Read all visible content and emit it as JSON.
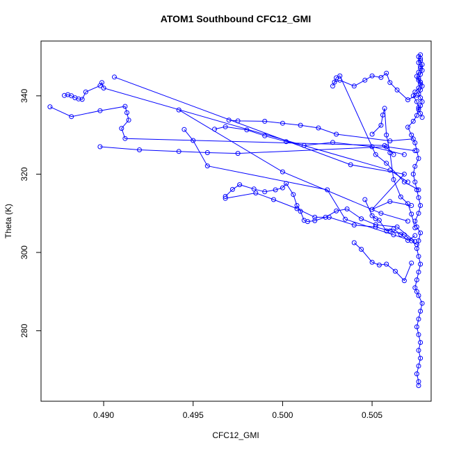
{
  "chart_data": {
    "type": "scatter",
    "title": "ATOM1 Southbound CFC12_GMI",
    "xlabel": "CFC12_GMI",
    "ylabel": "Theta (K)",
    "xlim": [
      0.4865,
      0.5083
    ],
    "ylim": [
      262,
      354
    ],
    "x_ticks": [
      0.49,
      0.495,
      0.5,
      0.505
    ],
    "x_tick_labels": [
      "0.490",
      "0.495",
      "0.500",
      "0.505"
    ],
    "y_ticks": [
      280,
      300,
      320,
      340
    ],
    "y_tick_labels": [
      "280",
      "300",
      "320",
      "340"
    ],
    "grid": false,
    "legend": "none",
    "series_color": "#0000ff",
    "marker": "open-circle",
    "connect_points": true,
    "series": [
      {
        "x": [
          0.5076,
          0.5076,
          0.5075,
          0.5076,
          0.5077,
          0.5076,
          0.5077,
          0.5076,
          0.5075,
          0.5076,
          0.5077,
          0.5078,
          0.5076,
          0.5075,
          0.5074,
          0.5075,
          0.5076,
          0.5077,
          0.5076,
          0.5075,
          0.5076,
          0.5077,
          0.5075,
          0.5074,
          0.5076,
          0.5077,
          0.5076,
          0.5075,
          0.5074,
          0.5073,
          0.5074,
          0.5076,
          0.5075,
          0.5074,
          0.5072,
          0.507,
          0.5073,
          0.5075,
          0.5076,
          0.5075,
          0.5073,
          0.5074,
          0.5076,
          0.5077,
          0.5076,
          0.5075,
          0.5076,
          0.5077,
          0.5078,
          0.5077,
          0.5076,
          0.5077,
          0.5077,
          0.5076,
          0.5077,
          0.5078,
          0.5077,
          0.5076,
          0.5077,
          0.5078,
          0.5077,
          0.5076,
          0.5077,
          0.5078,
          0.5077,
          0.5076,
          0.5077,
          0.5078
        ],
        "y": [
          266.0,
          267.0,
          269.0,
          271.0,
          273.0,
          275.0,
          277.0,
          279.0,
          281.0,
          283.0,
          285.0,
          287.0,
          289.0,
          290.0,
          291.0,
          293.0,
          295.0,
          297.0,
          299.0,
          301.0,
          303.0,
          305.0,
          306.5,
          308.0,
          310.0,
          312.0,
          314.0,
          316.0,
          318.0,
          320.0,
          322.0,
          324.0,
          326.0,
          328.0,
          330.0,
          332.0,
          333.5,
          335.0,
          337.0,
          338.5,
          340.0,
          341.0,
          342.0,
          343.0,
          344.0,
          345.0,
          346.0,
          347.0,
          348.0,
          349.0,
          350.0,
          350.5,
          349.5,
          348.5,
          347.5,
          346.5,
          345.5,
          344.5,
          343.5,
          342.5,
          341.5,
          340.5,
          339.5,
          338.5,
          337.5,
          336.5,
          335.5,
          334.5
        ]
      },
      {
        "x": [
          0.487,
          0.4882,
          0.4898,
          0.4912,
          0.4913,
          0.4914,
          0.491,
          0.4912,
          0.5057,
          0.5062
        ],
        "y": [
          337.2,
          334.7,
          336.2,
          337.3,
          335.7,
          333.8,
          331.7,
          329.1,
          327.3,
          325.0
        ]
      },
      {
        "x": [
          0.4878,
          0.488,
          0.4882,
          0.4884,
          0.4886,
          0.4888,
          0.489,
          0.4898,
          0.4899,
          0.49,
          0.506,
          0.507
        ],
        "y": [
          340.1,
          340.3,
          340.0,
          339.5,
          339.2,
          339.1,
          341.0,
          342.6,
          343.4,
          342.0,
          321.0,
          318.0
        ]
      },
      {
        "x": [
          0.4906,
          0.5038,
          0.5068,
          0.505,
          0.506,
          0.5072
        ],
        "y": [
          344.8,
          322.4,
          320.0,
          311.0,
          313.0,
          312.0
        ]
      },
      {
        "x": [
          0.4898,
          0.492,
          0.4942,
          0.4958,
          0.4975,
          0.5058,
          0.5074
        ],
        "y": [
          327.0,
          326.2,
          325.8,
          325.5,
          325.3,
          327.0,
          326.0
        ]
      },
      {
        "x": [
          0.4942,
          0.5,
          0.5055,
          0.507
        ],
        "y": [
          336.4,
          320.6,
          310.0,
          308.0
        ]
      },
      {
        "x": [
          0.4945,
          0.495,
          0.4958,
          0.5025,
          0.5035,
          0.5062,
          0.5072
        ],
        "y": [
          331.4,
          328.6,
          322.1,
          316.0,
          308.5,
          304.5,
          303.0
        ]
      },
      {
        "x": [
          0.497,
          0.4975,
          0.499,
          0.5,
          0.501,
          0.502,
          0.503,
          0.506,
          0.5073
        ],
        "y": [
          333.8,
          333.6,
          333.5,
          333.0,
          332.5,
          331.8,
          330.2,
          328.5,
          329.0
        ]
      },
      {
        "x": [
          0.4962,
          0.4968,
          0.498,
          0.499,
          0.5002,
          0.5012,
          0.5028,
          0.505,
          0.5068
        ],
        "y": [
          331.5,
          332.1,
          331.3,
          329.8,
          328.3,
          327.3,
          328.1,
          327.0,
          325.0
        ]
      },
      {
        "x": [
          0.4968,
          0.4972,
          0.4976,
          0.4984,
          0.499,
          0.4996,
          0.5,
          0.5002,
          0.5006,
          0.5008,
          0.501,
          0.5012,
          0.5014,
          0.5018,
          0.5024,
          0.503,
          0.5036,
          0.5044,
          0.5052,
          0.5064,
          0.5074
        ],
        "y": [
          314.3,
          316.1,
          317.3,
          316.2,
          315.5,
          316.0,
          316.5,
          317.6,
          314.8,
          312.0,
          310.5,
          308.2,
          307.9,
          308.1,
          309.0,
          310.6,
          311.1,
          308.6,
          307.1,
          306.5,
          302.8
        ]
      },
      {
        "x": [
          0.4968,
          0.4985,
          0.4995,
          0.5008,
          0.5018,
          0.5026,
          0.504,
          0.5052,
          0.506,
          0.5068,
          0.5075
        ],
        "y": [
          313.8,
          315.2,
          313.5,
          311.2,
          309.0,
          309.0,
          307.0,
          306.5,
          305.5,
          304.5,
          302.0
        ]
      },
      {
        "x": [
          0.5028,
          0.503,
          0.5032,
          0.5052,
          0.5058,
          0.5068,
          0.5076
        ],
        "y": [
          342.5,
          344.6,
          345.1,
          325.0,
          322.8,
          318.0,
          316.0
        ]
      },
      {
        "x": [
          0.5029,
          0.5032,
          0.504,
          0.5046,
          0.505,
          0.5055,
          0.5058,
          0.506,
          0.5064,
          0.507,
          0.5075
        ],
        "y": [
          343.5,
          344.0,
          342.5,
          344.0,
          345.1,
          344.7,
          345.8,
          343.4,
          341.5,
          339.0,
          340.2
        ]
      },
      {
        "x": [
          0.505,
          0.5055,
          0.5056,
          0.5057,
          0.5058,
          0.506,
          0.5062,
          0.5066,
          0.507,
          0.5072,
          0.5074
        ],
        "y": [
          330.2,
          332.5,
          335.1,
          336.8,
          330.0,
          325.5,
          318.6,
          314.2,
          312.5,
          309.8,
          306.3
        ]
      },
      {
        "x": [
          0.504,
          0.5044,
          0.505,
          0.5054,
          0.5058,
          0.5063,
          0.5068,
          0.5072
        ],
        "y": [
          302.5,
          300.8,
          297.5,
          296.8,
          297.0,
          295.2,
          292.8,
          297.3
        ]
      },
      {
        "x": [
          0.5046,
          0.505,
          0.5052,
          0.5054,
          0.5058,
          0.5062,
          0.5066,
          0.507,
          0.5074
        ],
        "y": [
          313.5,
          309.4,
          308.6,
          308.2,
          305.5,
          306.0,
          304.6,
          303.1,
          304.3
        ]
      }
    ]
  }
}
